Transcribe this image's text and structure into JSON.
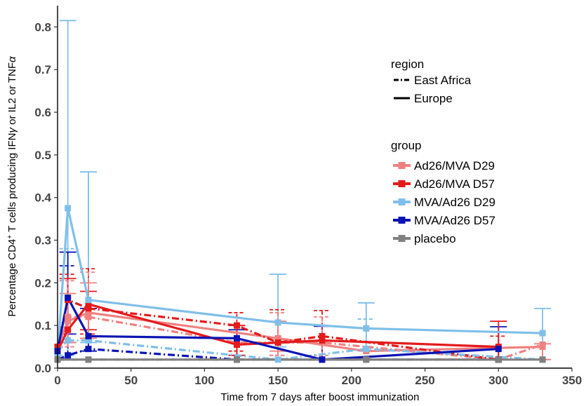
{
  "chart_data": {
    "type": "line",
    "xlabel": "Time from 7 days after boost immunization",
    "ylabel_parts": {
      "pre": "Percentage CD4",
      "sup": "+",
      "post": " T cells producing IFN",
      "gamma": "γ",
      "mid": " or IL2 or TNF",
      "alpha": "α"
    },
    "xlim": [
      0,
      350
    ],
    "ylim": [
      0,
      0.85
    ],
    "xticks": [
      0,
      50,
      100,
      150,
      200,
      250,
      300,
      350
    ],
    "xtick_labels": [
      "0",
      "50",
      "100",
      "150",
      "200",
      "250",
      "300",
      "350"
    ],
    "yticks": [
      0,
      0.1,
      0.2,
      0.3,
      0.4,
      0.5,
      0.6,
      0.7,
      0.8
    ],
    "ytick_labels": [
      "0.0",
      "0.1",
      "0.2",
      "0.3",
      "0.4",
      "0.5",
      "0.6",
      "0.7",
      "0.8"
    ],
    "grid": false,
    "legend": {
      "placement": "right",
      "region_title": "region",
      "region_items": [
        {
          "label": "East Africa",
          "linestyle": "dashed"
        },
        {
          "label": "Europe",
          "linestyle": "solid"
        }
      ],
      "group_title": "group",
      "group_items": [
        {
          "label": "Ad26/MVA D29",
          "color": "#F08080"
        },
        {
          "label": "Ad26/MVA D57",
          "color": "#E31A1C"
        },
        {
          "label": "MVA/Ad26 D29",
          "color": "#7FBFEA"
        },
        {
          "label": "MVA/Ad26 D57",
          "color": "#0A14B4"
        },
        {
          "label": "placebo",
          "color": "#808080"
        }
      ]
    },
    "series": [
      {
        "group": "Ad26/MVA D29",
        "region": "Europe",
        "color": "#F08080",
        "linestyle": "solid",
        "points": [
          {
            "x": 0,
            "y": 0.05
          },
          {
            "x": 7,
            "y": 0.11
          },
          {
            "x": 21,
            "y": 0.13
          },
          {
            "x": 150,
            "y": 0.07
          },
          {
            "x": 210,
            "y": 0.04
          },
          {
            "x": 330,
            "y": 0.05
          }
        ]
      },
      {
        "group": "Ad26/MVA D29",
        "region": "East Africa",
        "color": "#F08080",
        "linestyle": "dashed",
        "points": [
          {
            "x": 0,
            "y": 0.04
          },
          {
            "x": 7,
            "y": 0.12
          },
          {
            "x": 21,
            "y": 0.12
          },
          {
            "x": 122,
            "y": 0.06
          },
          {
            "x": 180,
            "y": 0.06
          },
          {
            "x": 300,
            "y": 0.02
          },
          {
            "x": 330,
            "y": 0.055
          }
        ]
      },
      {
        "group": "Ad26/MVA D57",
        "region": "Europe",
        "color": "#E31A1C",
        "linestyle": "solid",
        "points": [
          {
            "x": 0,
            "y": 0.04
          },
          {
            "x": 7,
            "y": 0.09
          },
          {
            "x": 21,
            "y": 0.15
          },
          {
            "x": 122,
            "y": 0.055
          },
          {
            "x": 180,
            "y": 0.065
          },
          {
            "x": 300,
            "y": 0.05
          }
        ]
      },
      {
        "group": "Ad26/MVA D57",
        "region": "East Africa",
        "color": "#E31A1C",
        "linestyle": "dashed",
        "points": [
          {
            "x": 0,
            "y": 0.05
          },
          {
            "x": 7,
            "y": 0.16
          },
          {
            "x": 21,
            "y": 0.14
          },
          {
            "x": 122,
            "y": 0.1
          },
          {
            "x": 150,
            "y": 0.06
          },
          {
            "x": 180,
            "y": 0.075
          },
          {
            "x": 300,
            "y": 0.02
          }
        ]
      },
      {
        "group": "MVA/Ad26 D29",
        "region": "Europe",
        "color": "#7FBFEA",
        "linestyle": "solid",
        "points": [
          {
            "x": 0,
            "y": 0.03
          },
          {
            "x": 7,
            "y": 0.375
          },
          {
            "x": 21,
            "y": 0.16
          },
          {
            "x": 150,
            "y": 0.107
          },
          {
            "x": 210,
            "y": 0.093
          },
          {
            "x": 330,
            "y": 0.082
          }
        ]
      },
      {
        "group": "MVA/Ad26 D29",
        "region": "East Africa",
        "color": "#7FBFEA",
        "linestyle": "dashed",
        "points": [
          {
            "x": 0,
            "y": 0.04
          },
          {
            "x": 7,
            "y": 0.065
          },
          {
            "x": 21,
            "y": 0.065
          },
          {
            "x": 150,
            "y": 0.02
          },
          {
            "x": 210,
            "y": 0.045
          },
          {
            "x": 330,
            "y": 0.02
          }
        ]
      },
      {
        "group": "MVA/Ad26 D57",
        "region": "Europe",
        "color": "#0A14B4",
        "linestyle": "solid",
        "points": [
          {
            "x": 0,
            "y": 0.04
          },
          {
            "x": 7,
            "y": 0.165
          },
          {
            "x": 21,
            "y": 0.075
          },
          {
            "x": 122,
            "y": 0.07
          },
          {
            "x": 180,
            "y": 0.02
          },
          {
            "x": 300,
            "y": 0.045
          }
        ]
      },
      {
        "group": "MVA/Ad26 D57",
        "region": "East Africa",
        "color": "#0A14B4",
        "linestyle": "dashed",
        "points": [
          {
            "x": 0,
            "y": 0.02
          },
          {
            "x": 7,
            "y": 0.03
          },
          {
            "x": 21,
            "y": 0.045
          },
          {
            "x": 122,
            "y": 0.02
          },
          {
            "x": 180,
            "y": 0.02
          },
          {
            "x": 300,
            "y": 0.02
          }
        ]
      },
      {
        "group": "placebo",
        "region": "Europe",
        "color": "#808080",
        "linestyle": "solid",
        "points": [
          {
            "x": 0,
            "y": 0.02
          },
          {
            "x": 21,
            "y": 0.02
          },
          {
            "x": 122,
            "y": 0.02
          },
          {
            "x": 210,
            "y": 0.02
          },
          {
            "x": 330,
            "y": 0.02
          }
        ]
      },
      {
        "group": "placebo",
        "region": "East Africa",
        "color": "#808080",
        "linestyle": "dashed",
        "points": [
          {
            "x": 0,
            "y": 0.02
          },
          {
            "x": 21,
            "y": 0.02
          },
          {
            "x": 122,
            "y": 0.02
          },
          {
            "x": 210,
            "y": 0.02
          },
          {
            "x": 300,
            "y": 0.02
          }
        ]
      }
    ],
    "error_bars": [
      {
        "color": "#7FBFEA",
        "linestyle": "solid",
        "x": 7,
        "low": 0.02,
        "high": 0.815
      },
      {
        "color": "#7FBFEA",
        "linestyle": "solid",
        "x": 21,
        "low": 0.06,
        "high": 0.46
      },
      {
        "color": "#7FBFEA",
        "linestyle": "solid",
        "x": 150,
        "low": 0.05,
        "high": 0.22
      },
      {
        "color": "#7FBFEA",
        "linestyle": "solid",
        "x": 210,
        "low": 0.04,
        "high": 0.153
      },
      {
        "color": "#7FBFEA",
        "linestyle": "solid",
        "x": 330,
        "low": 0.02,
        "high": 0.14
      },
      {
        "color": "#7FBFEA",
        "linestyle": "dashed",
        "x": 7,
        "low": 0.03,
        "high": 0.28
      },
      {
        "color": "#7FBFEA",
        "linestyle": "dashed",
        "x": 210,
        "low": 0.02,
        "high": 0.115
      },
      {
        "color": "#0A14B4",
        "linestyle": "solid",
        "x": 7,
        "low": 0.08,
        "high": 0.272
      },
      {
        "color": "#0A14B4",
        "linestyle": "solid",
        "x": 21,
        "low": 0.04,
        "high": 0.14
      },
      {
        "color": "#0A14B4",
        "linestyle": "solid",
        "x": 122,
        "low": 0.03,
        "high": 0.09
      },
      {
        "color": "#0A14B4",
        "linestyle": "solid",
        "x": 180,
        "low": 0.02,
        "high": 0.098
      },
      {
        "color": "#0A14B4",
        "linestyle": "solid",
        "x": 300,
        "low": 0.02,
        "high": 0.097
      },
      {
        "color": "#0A14B4",
        "linestyle": "dashed",
        "x": 7,
        "low": 0.02,
        "high": 0.24
      },
      {
        "color": "#E31A1C",
        "linestyle": "solid",
        "x": 7,
        "low": 0.06,
        "high": 0.21
      },
      {
        "color": "#E31A1C",
        "linestyle": "solid",
        "x": 21,
        "low": 0.09,
        "high": 0.18
      },
      {
        "color": "#E31A1C",
        "linestyle": "solid",
        "x": 122,
        "low": 0.03,
        "high": 0.1
      },
      {
        "color": "#E31A1C",
        "linestyle": "solid",
        "x": 300,
        "low": 0.02,
        "high": 0.11
      },
      {
        "color": "#E31A1C",
        "linestyle": "dashed",
        "x": 7,
        "low": 0.05,
        "high": 0.22
      },
      {
        "color": "#E31A1C",
        "linestyle": "dashed",
        "x": 21,
        "low": 0.08,
        "high": 0.233
      },
      {
        "color": "#E31A1C",
        "linestyle": "dashed",
        "x": 122,
        "low": 0.04,
        "high": 0.13
      },
      {
        "color": "#E31A1C",
        "linestyle": "dashed",
        "x": 150,
        "low": 0.03,
        "high": 0.137
      },
      {
        "color": "#E31A1C",
        "linestyle": "dashed",
        "x": 180,
        "low": 0.02,
        "high": 0.135
      },
      {
        "color": "#E31A1C",
        "linestyle": "dashed",
        "x": 300,
        "low": 0.02,
        "high": 0.075
      },
      {
        "color": "#F08080",
        "linestyle": "solid",
        "x": 7,
        "low": 0.06,
        "high": 0.175
      },
      {
        "color": "#F08080",
        "linestyle": "solid",
        "x": 21,
        "low": 0.07,
        "high": 0.2
      },
      {
        "color": "#F08080",
        "linestyle": "solid",
        "x": 150,
        "low": 0.04,
        "high": 0.11
      },
      {
        "color": "#F08080",
        "linestyle": "solid",
        "x": 330,
        "low": 0.02,
        "high": 0.057
      },
      {
        "color": "#F08080",
        "linestyle": "dashed",
        "x": 7,
        "low": 0.05,
        "high": 0.205
      },
      {
        "color": "#F08080",
        "linestyle": "dashed",
        "x": 21,
        "low": 0.07,
        "high": 0.225
      },
      {
        "color": "#F08080",
        "linestyle": "dashed",
        "x": 150,
        "low": 0.03,
        "high": 0.13
      },
      {
        "color": "#F08080",
        "linestyle": "dashed",
        "x": 180,
        "low": 0.03,
        "high": 0.12
      }
    ]
  }
}
